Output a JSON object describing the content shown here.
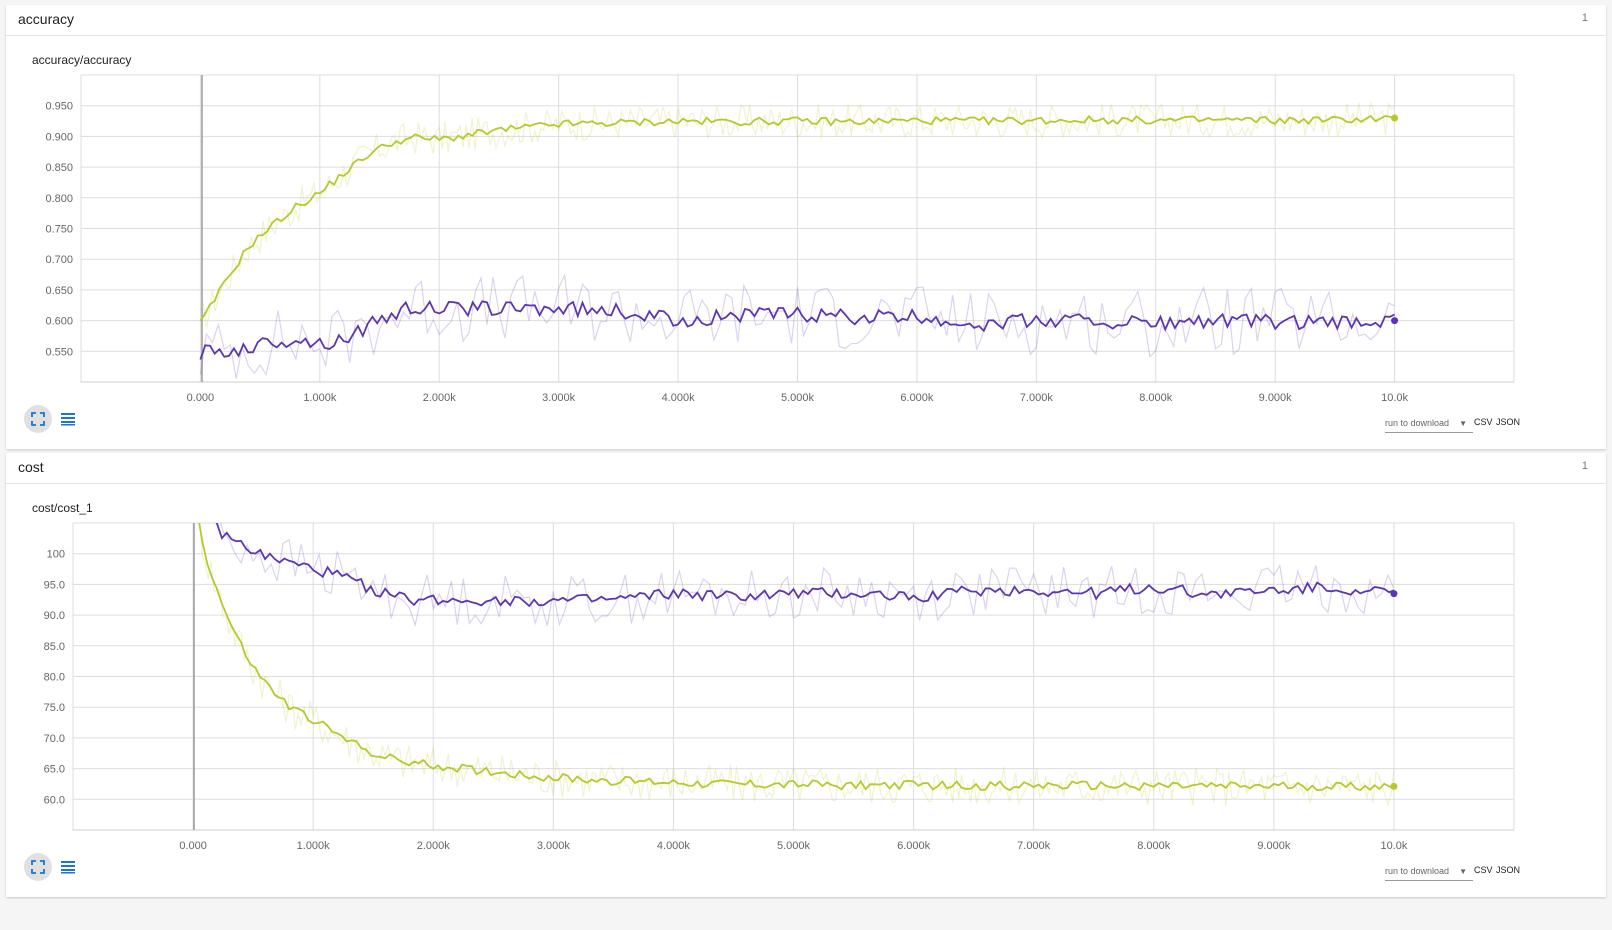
{
  "sections": [
    {
      "name": "accuracy",
      "count": "1",
      "chart_title": "accuracy/accuracy",
      "download_select": "run to download",
      "csv": "CSV",
      "json": "JSON"
    },
    {
      "name": "cost",
      "count": "1",
      "chart_title": "cost/cost_1",
      "download_select": "run to download",
      "csv": "CSV",
      "json": "JSON"
    }
  ],
  "colors": {
    "train": "#b8c829",
    "test": "#5e35b1",
    "grid": "#dddddd",
    "axis": "#cccccc"
  },
  "icons": [
    "fullscreen-icon",
    "data-table-icon",
    "dropdown-arrow-icon"
  ],
  "chart_data": [
    {
      "type": "line",
      "title": "accuracy/accuracy",
      "xlabel": "",
      "ylabel": "",
      "x_ticks": [
        "0.000",
        "1.000k",
        "2.000k",
        "3.000k",
        "4.000k",
        "5.000k",
        "6.000k",
        "7.000k",
        "8.000k",
        "9.000k",
        "10.0k"
      ],
      "y_ticks": [
        "0.550",
        "0.600",
        "0.650",
        "0.700",
        "0.750",
        "0.800",
        "0.850",
        "0.900",
        "0.950"
      ],
      "xlim": [
        -1000,
        11000
      ],
      "ylim": [
        0.5,
        1.0
      ],
      "grid": true,
      "legend": "none",
      "smoothing": 0.6,
      "series": [
        {
          "color_key": "train",
          "x": [
            0,
            200,
            400,
            600,
            800,
            1000,
            1200,
            1400,
            1600,
            1800,
            2000,
            2500,
            3000,
            3500,
            4000,
            4500,
            5000,
            5500,
            6000,
            6500,
            7000,
            7500,
            8000,
            8500,
            9000,
            9500,
            10000
          ],
          "y": [
            0.595,
            0.66,
            0.72,
            0.755,
            0.785,
            0.808,
            0.84,
            0.87,
            0.89,
            0.898,
            0.895,
            0.91,
            0.92,
            0.922,
            0.925,
            0.924,
            0.925,
            0.924,
            0.926,
            0.925,
            0.926,
            0.927,
            0.926,
            0.927,
            0.926,
            0.927,
            0.93
          ]
        },
        {
          "color_key": "test",
          "x": [
            0,
            200,
            400,
            600,
            800,
            1000,
            1200,
            1400,
            1600,
            1800,
            2000,
            2500,
            3000,
            3500,
            4000,
            4500,
            5000,
            5500,
            6000,
            6500,
            7000,
            7500,
            8000,
            8500,
            9000,
            9500,
            10000
          ],
          "y": [
            0.548,
            0.55,
            0.555,
            0.565,
            0.57,
            0.562,
            0.57,
            0.59,
            0.61,
            0.622,
            0.62,
            0.62,
            0.62,
            0.615,
            0.6,
            0.61,
            0.61,
            0.605,
            0.605,
            0.595,
            0.6,
            0.6,
            0.595,
            0.6,
            0.598,
            0.595,
            0.6
          ]
        }
      ]
    },
    {
      "type": "line",
      "title": "cost/cost_1",
      "xlabel": "",
      "ylabel": "",
      "x_ticks": [
        "0.000",
        "1.000k",
        "2.000k",
        "3.000k",
        "4.000k",
        "5.000k",
        "6.000k",
        "7.000k",
        "8.000k",
        "9.000k",
        "10.0k"
      ],
      "y_ticks": [
        "60.0",
        "65.0",
        "70.0",
        "75.0",
        "80.0",
        "85.0",
        "90.0",
        "95.0",
        "100"
      ],
      "xlim": [
        -1000,
        11000
      ],
      "ylim": [
        55,
        105
      ],
      "grid": true,
      "legend": "none",
      "smoothing": 0.6,
      "series": [
        {
          "color_key": "train",
          "x": [
            0,
            100,
            200,
            300,
            400,
            500,
            600,
            700,
            800,
            900,
            1000,
            1200,
            1400,
            1600,
            1800,
            2000,
            2500,
            3000,
            3500,
            4000,
            4500,
            5000,
            5500,
            6000,
            6500,
            7000,
            7500,
            8000,
            8500,
            9000,
            9500,
            10000
          ],
          "y": [
            110,
            100,
            94,
            89,
            85,
            81.5,
            79,
            77,
            75,
            74,
            73,
            70.5,
            68.5,
            66.8,
            66,
            65.5,
            64.5,
            63.5,
            63,
            62.8,
            62.5,
            62.4,
            62.3,
            62.3,
            62.2,
            62.2,
            62.2,
            62.2,
            62.1,
            62.1,
            62.1,
            62.1
          ]
        },
        {
          "color_key": "test",
          "x": [
            0,
            100,
            200,
            300,
            400,
            500,
            600,
            700,
            800,
            900,
            1000,
            1200,
            1400,
            1600,
            1800,
            2000,
            2500,
            3000,
            3500,
            4000,
            4500,
            5000,
            5500,
            6000,
            6500,
            7000,
            7500,
            8000,
            8500,
            9000,
            9500,
            10000
          ],
          "y": [
            112,
            107,
            104,
            102.5,
            101.5,
            100.5,
            99.5,
            99,
            98.5,
            98,
            97.5,
            96.5,
            95,
            93.5,
            92.5,
            92.5,
            92.5,
            92.3,
            92.5,
            93.5,
            93,
            93.5,
            93.5,
            93,
            94,
            94,
            93.5,
            94.5,
            93.5,
            94,
            94.5,
            93.5
          ]
        }
      ]
    }
  ]
}
